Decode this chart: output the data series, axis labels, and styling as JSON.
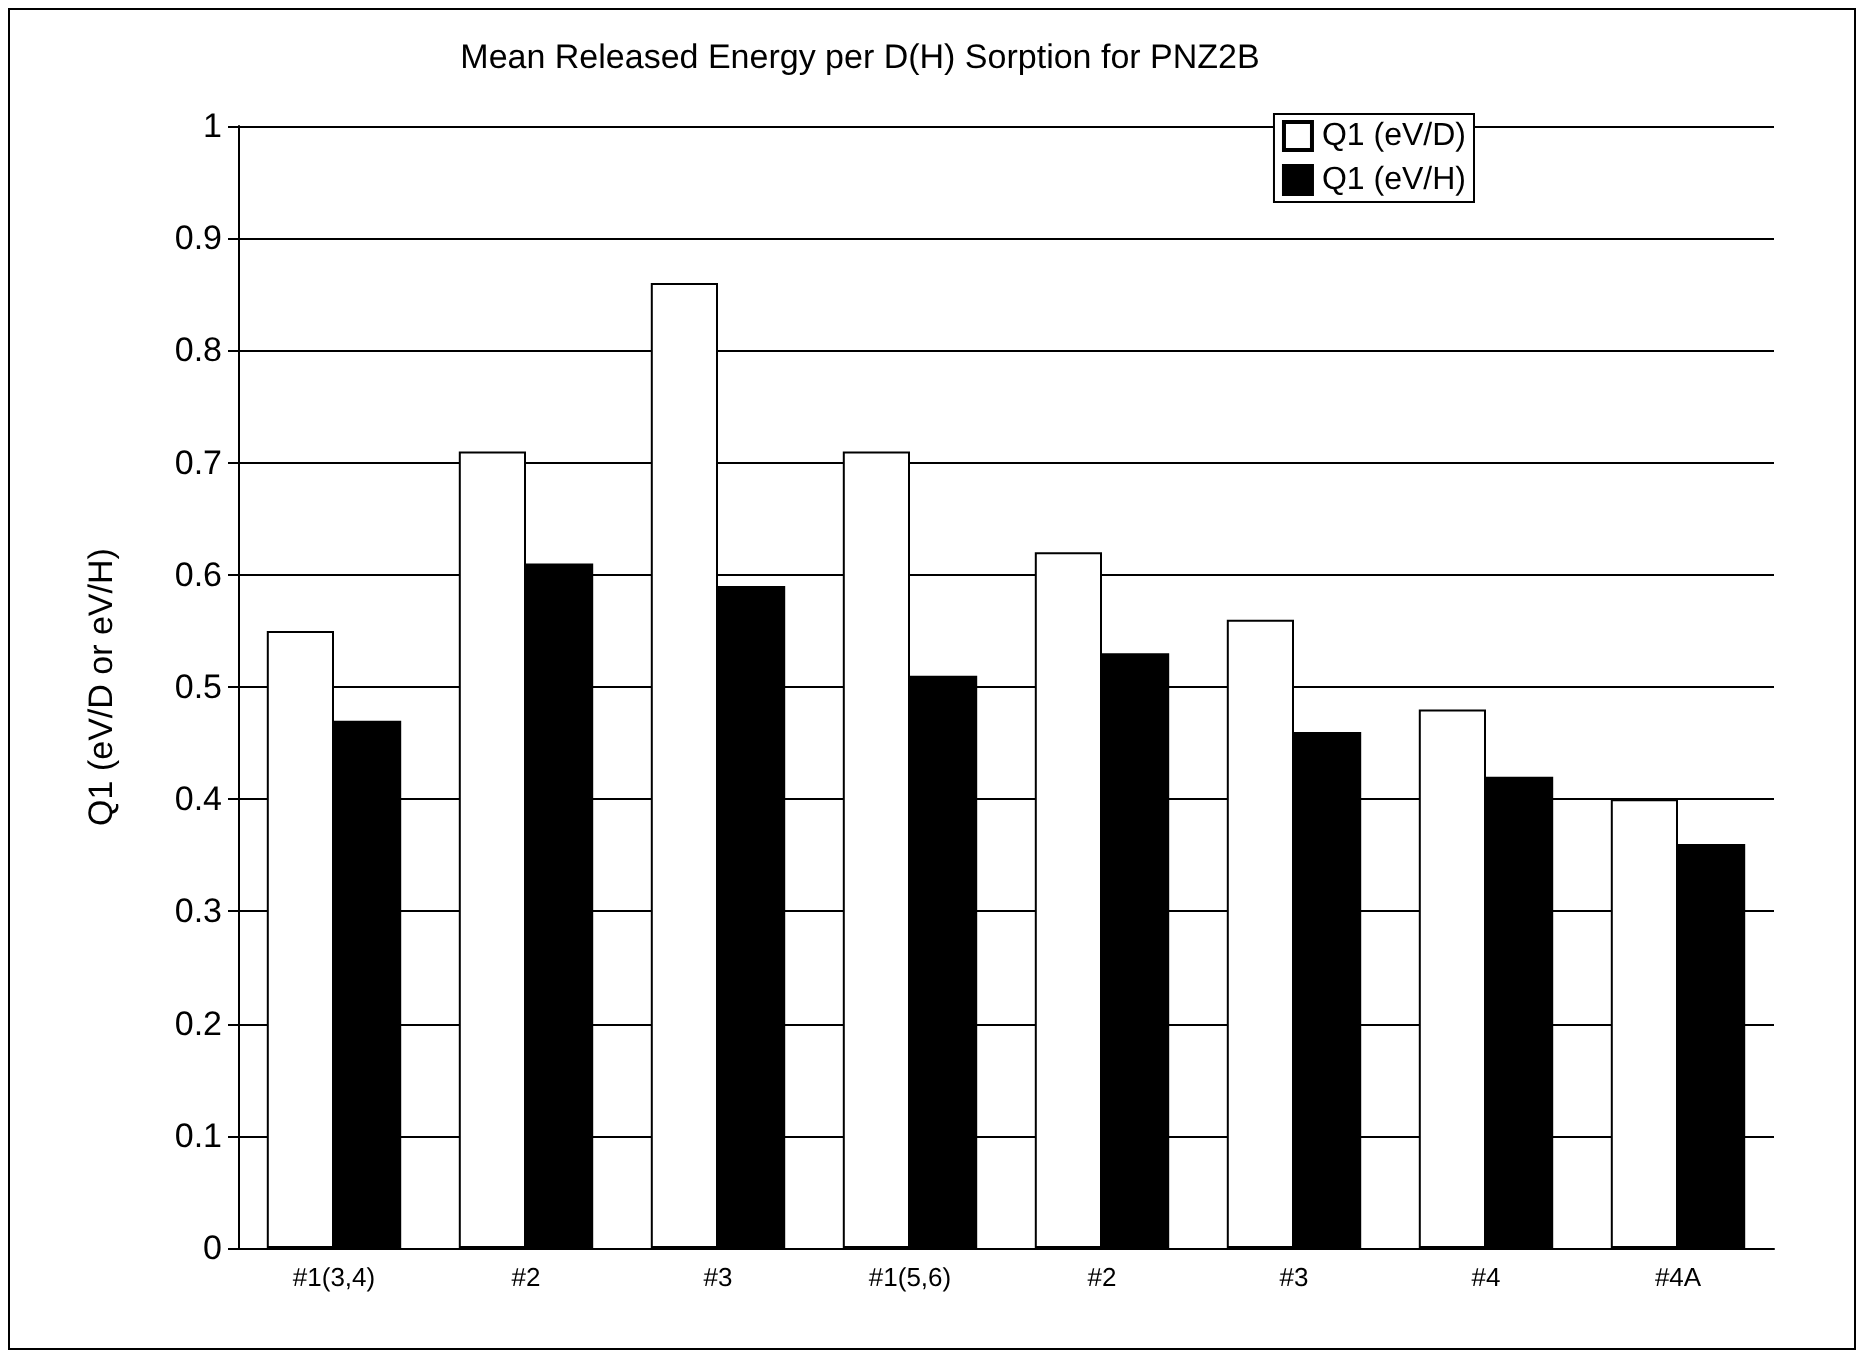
{
  "chart_data": {
    "type": "bar",
    "title": "Mean Released Energy per D(H) Sorption for PNZ2B",
    "ylabel": "Q1 (eV/D or eV/H)",
    "categories": [
      "#1(3,4)",
      "#2",
      "#3",
      "#1(5,6)",
      "#2",
      "#3",
      "#4",
      "#4A"
    ],
    "series": [
      {
        "name": "Q1 (eV/D)",
        "color": "#ffffff",
        "values": [
          0.55,
          0.71,
          0.86,
          0.71,
          0.62,
          0.56,
          0.48,
          0.4
        ]
      },
      {
        "name": "Q1 (eV/H)",
        "color": "#000000",
        "values": [
          0.47,
          0.61,
          0.59,
          0.51,
          0.53,
          0.46,
          0.42,
          0.36
        ]
      }
    ],
    "ylim": [
      0,
      1
    ],
    "yticks": [
      0,
      0.1,
      0.2,
      0.3,
      0.4,
      0.5,
      0.6,
      0.7,
      0.8,
      0.9,
      1
    ],
    "grid": "y",
    "legend": "top right"
  }
}
